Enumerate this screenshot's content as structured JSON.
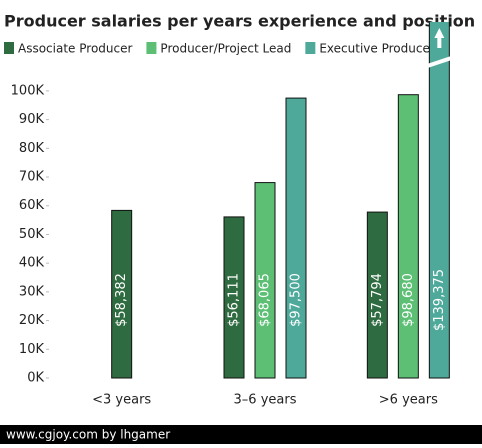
{
  "chart_data": {
    "type": "bar",
    "title": "Producer salaries per years experience and position",
    "categories": [
      "<3 years",
      "3–6 years",
      ">6 years"
    ],
    "series": [
      {
        "name": "Associate Producer",
        "color": "#2f6b40",
        "values": [
          58382,
          56111,
          57794
        ],
        "value_labels": [
          "$58,382",
          "$56,111",
          "$57,794"
        ]
      },
      {
        "name": "Producer/Project Lead",
        "color": "#5cbf74",
        "values": [
          null,
          68065,
          98680
        ],
        "value_labels": [
          null,
          "$68,065",
          "$98,680"
        ]
      },
      {
        "name": "Executive Producer",
        "color": "#4fa99b",
        "values": [
          null,
          97500,
          139375
        ],
        "value_labels": [
          null,
          "$97,500",
          "$139,375"
        ]
      }
    ],
    "ylim": [
      0,
      124000
    ],
    "yticks": [
      {
        "value": 0,
        "label": "0K"
      },
      {
        "value": 10000,
        "label": "10K"
      },
      {
        "value": 20000,
        "label": "20K"
      },
      {
        "value": 30000,
        "label": "30K"
      },
      {
        "value": 40000,
        "label": "40K"
      },
      {
        "value": 50000,
        "label": "50K"
      },
      {
        "value": 60000,
        "label": "60K"
      },
      {
        "value": 70000,
        "label": "70K"
      },
      {
        "value": 80000,
        "label": "80K"
      },
      {
        "value": 90000,
        "label": "90K"
      },
      {
        "value": 100000,
        "label": "100K"
      }
    ],
    "grid": false,
    "source": "www.cgjoy.com by lhgamer"
  }
}
